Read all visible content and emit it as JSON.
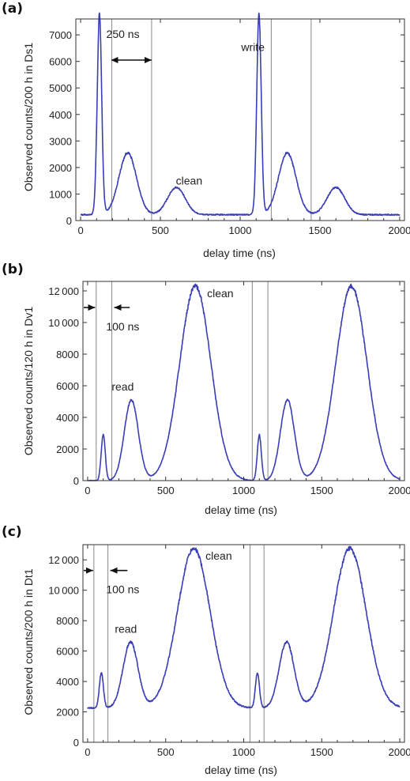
{
  "figure": {
    "line_color": "#3a3db4",
    "gate_color": "#888888"
  },
  "chart_data": [
    {
      "type": "line",
      "panel_label": "(a)",
      "xlabel": "delay time (ns)",
      "ylabel": "Observed counts/200 h in Ds1",
      "xlim": [
        -30,
        2030
      ],
      "ylim": [
        0,
        7600
      ],
      "x_ticks": [
        0,
        500,
        1000,
        1500,
        2000
      ],
      "y_ticks": [
        0,
        1000,
        2000,
        3000,
        4000,
        5000,
        6000,
        7000
      ],
      "gates": [
        195,
        445,
        1195,
        1445
      ],
      "baseline": 220,
      "peaks": [
        {
          "center": 118,
          "height": 7550,
          "width": 14
        },
        {
          "center": 295,
          "height": 2330,
          "width": 55
        },
        {
          "center": 600,
          "height": 1030,
          "width": 55
        },
        {
          "center": 1118,
          "height": 7550,
          "width": 14
        },
        {
          "center": 1295,
          "height": 2330,
          "width": 55
        },
        {
          "center": 1600,
          "height": 1030,
          "width": 55
        }
      ],
      "annotations": [
        {
          "text": "250 ns",
          "x": 265,
          "y": 6880
        },
        {
          "text": "write",
          "x": 1080,
          "y": 6400
        },
        {
          "text": "clean",
          "x": 680,
          "y": 1350
        }
      ],
      "arrows": [
        {
          "kind": "double",
          "x1": 195,
          "x2": 445,
          "y": 6050
        }
      ]
    },
    {
      "type": "line",
      "panel_label": "(b)",
      "xlabel": "delay time (ns)",
      "ylabel": "Observed counts/120 h in Dv1",
      "xlim": [
        -30,
        2030
      ],
      "ylim": [
        0,
        12600
      ],
      "x_ticks": [
        0,
        500,
        1000,
        1500,
        2000
      ],
      "y_ticks": [
        0,
        2000,
        4000,
        6000,
        8000,
        10000,
        12000
      ],
      "gates": [
        55,
        155,
        1055,
        1155
      ],
      "baseline": 0,
      "peaks": [
        {
          "center": 100,
          "height": 2900,
          "width": 13
        },
        {
          "center": 280,
          "height": 5100,
          "width": 45
        },
        {
          "center": 690,
          "height": 12300,
          "width": 100
        },
        {
          "center": 1100,
          "height": 2900,
          "width": 13
        },
        {
          "center": 1280,
          "height": 5100,
          "width": 45
        },
        {
          "center": 1690,
          "height": 12300,
          "width": 100
        }
      ],
      "annotations": [
        {
          "text": "clean",
          "x": 850,
          "y": 11600
        },
        {
          "text": "100 ns",
          "x": 225,
          "y": 9500
        },
        {
          "text": "read",
          "x": 225,
          "y": 5700
        }
      ],
      "arrows": [
        {
          "kind": "right",
          "x1": -25,
          "x2": 48,
          "y": 10950
        },
        {
          "kind": "left",
          "x1": 270,
          "x2": 170,
          "y": 10950
        }
      ]
    },
    {
      "type": "line",
      "panel_label": "(c)",
      "xlabel": "delay time (ns)",
      "ylabel": "Observed counts/200 h in Dt1",
      "xlim": [
        -30,
        2030
      ],
      "ylim": [
        0,
        13000
      ],
      "x_ticks": [
        0,
        500,
        1000,
        1500,
        2000
      ],
      "y_ticks": [
        0,
        2000,
        4000,
        6000,
        8000,
        10000,
        12000
      ],
      "gates": [
        40,
        130,
        1040,
        1130
      ],
      "baseline": 2250,
      "peaks": [
        {
          "center": 88,
          "height": 2300,
          "width": 13
        },
        {
          "center": 275,
          "height": 4350,
          "width": 48
        },
        {
          "center": 680,
          "height": 10500,
          "width": 105
        },
        {
          "center": 1088,
          "height": 2300,
          "width": 13
        },
        {
          "center": 1275,
          "height": 4350,
          "width": 48
        },
        {
          "center": 1680,
          "height": 10500,
          "width": 105
        }
      ],
      "annotations": [
        {
          "text": "clean",
          "x": 840,
          "y": 12000
        },
        {
          "text": "100 ns",
          "x": 225,
          "y": 9800
        },
        {
          "text": "read",
          "x": 245,
          "y": 7200
        }
      ],
      "arrows": [
        {
          "kind": "right",
          "x1": -25,
          "x2": 35,
          "y": 11300
        },
        {
          "kind": "left",
          "x1": 255,
          "x2": 145,
          "y": 11300
        }
      ]
    }
  ]
}
